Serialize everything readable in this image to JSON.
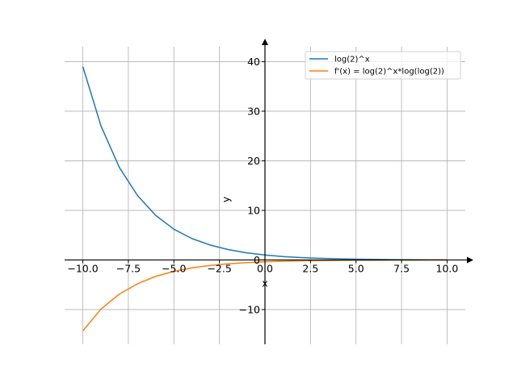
{
  "chart_data": {
    "type": "line",
    "xlabel": "x",
    "ylabel": "y",
    "xlim": [
      -11.0,
      11.0
    ],
    "ylim": [
      -17.0,
      43.0
    ],
    "grid": true,
    "legend_position": "top-right",
    "x_ticks": [
      -10.0,
      -7.5,
      -5.0,
      -2.5,
      0.0,
      2.5,
      5.0,
      7.5,
      10.0
    ],
    "x_tick_labels": [
      "−10.0",
      "−7.5",
      "−5.0",
      "−2.5",
      "0.0",
      "2.5",
      "5.0",
      "7.5",
      "10.0"
    ],
    "y_ticks": [
      -10,
      0,
      10,
      20,
      30,
      40
    ],
    "y_tick_labels": [
      "−10",
      "0",
      "10",
      "20",
      "30",
      "40"
    ],
    "series": [
      {
        "name": "log(2)^x",
        "color": "#1f77b4",
        "x": [
          -10,
          -9,
          -8,
          -7,
          -6,
          -5,
          -4,
          -3,
          -2,
          -1,
          0,
          1,
          2,
          3,
          4,
          5,
          6,
          7,
          8,
          9,
          10
        ],
        "y": [
          39.0,
          27.0,
          18.7,
          13.0,
          9.0,
          6.2,
          4.3,
          3.0,
          2.08,
          1.44,
          1.0,
          0.69,
          0.48,
          0.33,
          0.23,
          0.16,
          0.11,
          0.08,
          0.05,
          0.04,
          0.03
        ]
      },
      {
        "name": "f'(x) = log(2)^x*log(log(2))",
        "color": "#ff7f0e",
        "x": [
          -10,
          -9,
          -8,
          -7,
          -6,
          -5,
          -4,
          -3,
          -2,
          -1,
          0,
          1,
          2,
          3,
          4,
          5,
          6,
          7,
          8,
          9,
          10
        ],
        "y": [
          -14.3,
          -9.9,
          -6.9,
          -4.8,
          -3.3,
          -2.3,
          -1.58,
          -1.1,
          -0.76,
          -0.53,
          -0.37,
          -0.25,
          -0.18,
          -0.12,
          -0.085,
          -0.059,
          -0.041,
          -0.028,
          -0.02,
          -0.014,
          -0.0095
        ]
      }
    ]
  }
}
